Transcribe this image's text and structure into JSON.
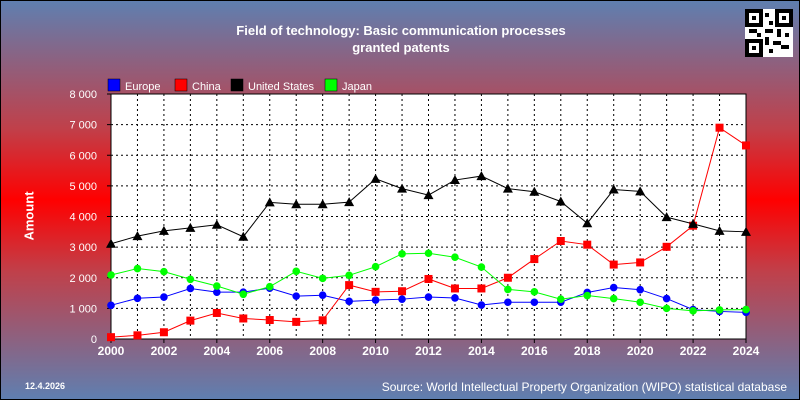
{
  "title_line1": "Field of technology: Basic communication processes",
  "title_line2": "granted patents",
  "date": "12.4.2026",
  "source": "Source: World Intellectual Property Organization (WIPO) statistical database",
  "chart_data": {
    "type": "line",
    "ylabel": "Amount",
    "xlabel": "",
    "xlim": [
      2000,
      2024
    ],
    "ylim": [
      0,
      8000
    ],
    "grid": true,
    "legend_position": "top-left",
    "x": [
      2000,
      2001,
      2002,
      2003,
      2004,
      2005,
      2006,
      2007,
      2008,
      2009,
      2010,
      2011,
      2012,
      2013,
      2014,
      2015,
      2016,
      2017,
      2018,
      2019,
      2020,
      2021,
      2022,
      2023,
      2024
    ],
    "x_tick_labels": [
      "2000",
      "2002",
      "2004",
      "2006",
      "2008",
      "2010",
      "2012",
      "2014",
      "2016",
      "2018",
      "2020",
      "2022",
      "2024"
    ],
    "y_tick_labels": [
      "0",
      "1 000",
      "2 000",
      "3 000",
      "4 000",
      "5 000",
      "6 000",
      "7 000",
      "8 000"
    ],
    "series": [
      {
        "name": "Europe",
        "color": "#0000ff",
        "marker": "circle",
        "values": [
          1100,
          1330,
          1370,
          1650,
          1530,
          1530,
          1660,
          1400,
          1430,
          1230,
          1270,
          1300,
          1370,
          1340,
          1110,
          1200,
          1200,
          1200,
          1520,
          1680,
          1610,
          1320,
          960,
          900,
          870
        ]
      },
      {
        "name": "China",
        "color": "#ff0000",
        "marker": "square",
        "values": [
          60,
          120,
          220,
          600,
          850,
          670,
          620,
          560,
          610,
          1760,
          1540,
          1560,
          1960,
          1650,
          1650,
          2000,
          2610,
          3200,
          3080,
          2430,
          2500,
          3010,
          3700,
          6900,
          6320
        ]
      },
      {
        "name": "United States",
        "color": "#000000",
        "marker": "triangle",
        "values": [
          3110,
          3360,
          3530,
          3630,
          3730,
          3340,
          4460,
          4400,
          4400,
          4470,
          5230,
          4910,
          4700,
          5190,
          5320,
          4910,
          4810,
          4490,
          3780,
          4880,
          4820,
          3980,
          3760,
          3530,
          3500
        ]
      },
      {
        "name": "Japan",
        "color": "#00ff00",
        "marker": "circle",
        "values": [
          2090,
          2300,
          2200,
          1950,
          1730,
          1460,
          1710,
          2210,
          1980,
          2080,
          2360,
          2780,
          2800,
          2670,
          2350,
          1620,
          1540,
          1300,
          1420,
          1320,
          1200,
          1000,
          920,
          950,
          960
        ]
      }
    ]
  }
}
